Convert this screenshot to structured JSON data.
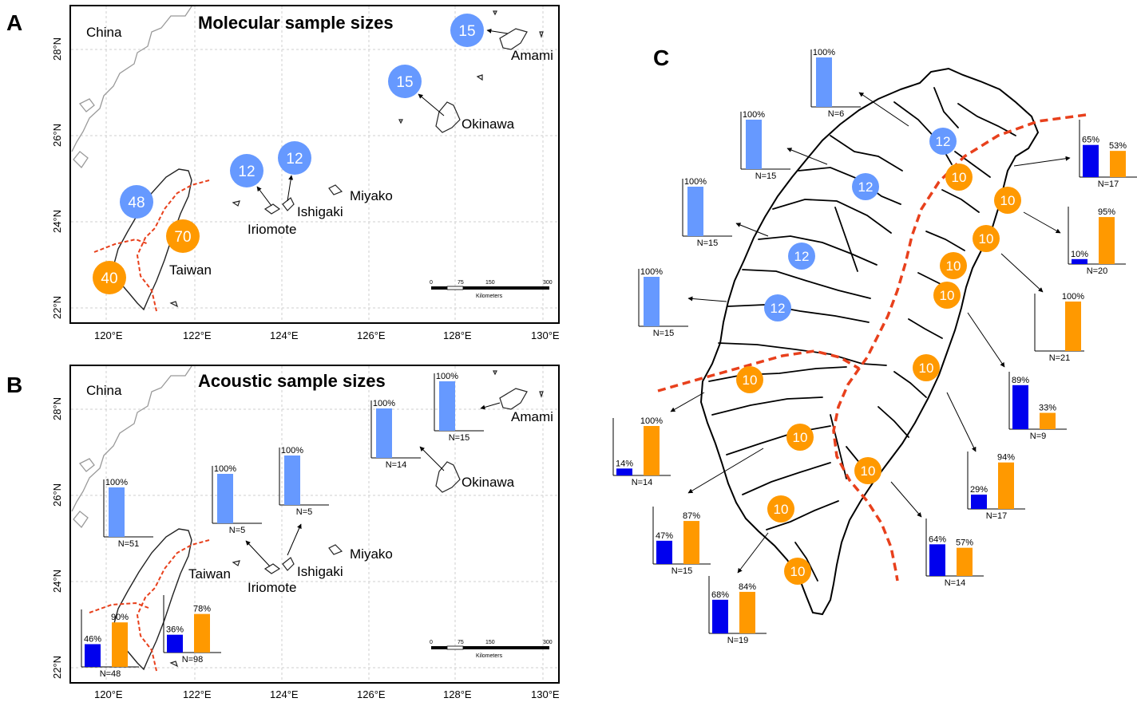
{
  "panels": {
    "A": {
      "letter": "A",
      "title": "Molecular sample sizes"
    },
    "B": {
      "letter": "B",
      "title": "Acoustic sample sizes"
    },
    "C": {
      "letter": "C"
    }
  },
  "place_labels": {
    "china": "China",
    "taiwan": "Taiwan",
    "iriomote": "Iriomote",
    "ishigaki": "Ishigaki",
    "miyako": "Miyako",
    "okinawa": "Okinawa",
    "amami": "Amami"
  },
  "axes": {
    "lon_ticks": [
      "120°E",
      "122°E",
      "124°E",
      "126°E",
      "128°E",
      "130°E"
    ],
    "lat_ticks": [
      "22°N",
      "24°N",
      "26°N",
      "28°N"
    ]
  },
  "scale_bar": {
    "ticks": [
      "0",
      "75",
      "150",
      "300"
    ],
    "unit": "Kilometers"
  },
  "colors": {
    "light_blue": "#6699ff",
    "dark_blue": "#0000ee",
    "orange": "#ff9900",
    "divide_line": "#e8401c",
    "outline": "#000000"
  },
  "panel_a_circles": [
    {
      "value": "15",
      "color": "light_blue",
      "site": "Amami"
    },
    {
      "value": "15",
      "color": "light_blue",
      "site": "Okinawa"
    },
    {
      "value": "12",
      "color": "light_blue",
      "site": "Iriomote"
    },
    {
      "value": "12",
      "color": "light_blue",
      "site": "Ishigaki"
    },
    {
      "value": "48",
      "color": "light_blue",
      "site": "Taiwan north-west"
    },
    {
      "value": "70",
      "color": "orange",
      "site": "Taiwan east"
    },
    {
      "value": "40",
      "color": "orange",
      "site": "Taiwan south-west"
    }
  ],
  "panel_b_charts": [
    {
      "site": "Amami",
      "n": "N=15",
      "bars": [
        {
          "color": "light_blue",
          "value": 100,
          "label": "100%"
        }
      ]
    },
    {
      "site": "Okinawa",
      "n": "N=14",
      "bars": [
        {
          "color": "light_blue",
          "value": 100,
          "label": "100%"
        }
      ]
    },
    {
      "site": "Ishigaki",
      "n": "N=5",
      "bars": [
        {
          "color": "light_blue",
          "value": 100,
          "label": "100%"
        }
      ]
    },
    {
      "site": "Iriomote",
      "n": "N=5",
      "bars": [
        {
          "color": "light_blue",
          "value": 100,
          "label": "100%"
        }
      ]
    },
    {
      "site": "Taiwan north-west",
      "n": "N=51",
      "bars": [
        {
          "color": "light_blue",
          "value": 100,
          "label": "100%"
        }
      ]
    },
    {
      "site": "Taiwan south-west",
      "n": "N=48",
      "bars": [
        {
          "color": "dark_blue",
          "value": 46,
          "label": "46%"
        },
        {
          "color": "orange",
          "value": 90,
          "label": "90%"
        }
      ]
    },
    {
      "site": "Taiwan east",
      "n": "N=98",
      "bars": [
        {
          "color": "dark_blue",
          "value": 36,
          "label": "36%"
        },
        {
          "color": "orange",
          "value": 78,
          "label": "78%"
        }
      ]
    }
  ],
  "panel_c_circles": [
    {
      "value": "12",
      "color": "light_blue"
    },
    {
      "value": "12",
      "color": "light_blue"
    },
    {
      "value": "12",
      "color": "light_blue"
    },
    {
      "value": "12",
      "color": "light_blue"
    },
    {
      "value": "10",
      "color": "orange"
    },
    {
      "value": "10",
      "color": "orange"
    },
    {
      "value": "10",
      "color": "orange"
    },
    {
      "value": "10",
      "color": "orange"
    },
    {
      "value": "10",
      "color": "orange"
    },
    {
      "value": "10",
      "color": "orange"
    },
    {
      "value": "10",
      "color": "orange"
    },
    {
      "value": "10",
      "color": "orange"
    },
    {
      "value": "10",
      "color": "orange"
    },
    {
      "value": "10",
      "color": "orange"
    },
    {
      "value": "10",
      "color": "orange"
    }
  ],
  "panel_c_charts": [
    {
      "n": "N=6",
      "bars": [
        {
          "color": "light_blue",
          "value": 100,
          "label": "100%"
        }
      ]
    },
    {
      "n": "N=15",
      "bars": [
        {
          "color": "light_blue",
          "value": 100,
          "label": "100%"
        }
      ]
    },
    {
      "n": "N=15",
      "bars": [
        {
          "color": "light_blue",
          "value": 100,
          "label": "100%"
        }
      ]
    },
    {
      "n": "N=15",
      "bars": [
        {
          "color": "light_blue",
          "value": 100,
          "label": "100%"
        }
      ]
    },
    {
      "n": "N=17",
      "bars": [
        {
          "color": "dark_blue",
          "value": 65,
          "label": "65%"
        },
        {
          "color": "orange",
          "value": 53,
          "label": "53%"
        }
      ]
    },
    {
      "n": "N=20",
      "bars": [
        {
          "color": "dark_blue",
          "value": 10,
          "label": "10%"
        },
        {
          "color": "orange",
          "value": 95,
          "label": "95%"
        }
      ]
    },
    {
      "n": "N=21",
      "bars": [
        {
          "color": "orange",
          "value": 100,
          "label": "100%"
        }
      ]
    },
    {
      "n": "N=9",
      "bars": [
        {
          "color": "dark_blue",
          "value": 89,
          "label": "89%"
        },
        {
          "color": "orange",
          "value": 33,
          "label": "33%"
        }
      ]
    },
    {
      "n": "N=17",
      "bars": [
        {
          "color": "dark_blue",
          "value": 29,
          "label": "29%"
        },
        {
          "color": "orange",
          "value": 94,
          "label": "94%"
        }
      ]
    },
    {
      "n": "N=14",
      "bars": [
        {
          "color": "dark_blue",
          "value": 64,
          "label": "64%"
        },
        {
          "color": "orange",
          "value": 57,
          "label": "57%"
        }
      ]
    },
    {
      "n": "N=19",
      "bars": [
        {
          "color": "dark_blue",
          "value": 68,
          "label": "68%"
        },
        {
          "color": "orange",
          "value": 84,
          "label": "84%"
        }
      ]
    },
    {
      "n": "N=15",
      "bars": [
        {
          "color": "dark_blue",
          "value": 47,
          "label": "47%"
        },
        {
          "color": "orange",
          "value": 87,
          "label": "87%"
        }
      ]
    },
    {
      "n": "N=14",
      "bars": [
        {
          "color": "dark_blue",
          "value": 14,
          "label": "14%"
        },
        {
          "color": "orange",
          "value": 100,
          "label": "100%"
        }
      ]
    }
  ]
}
